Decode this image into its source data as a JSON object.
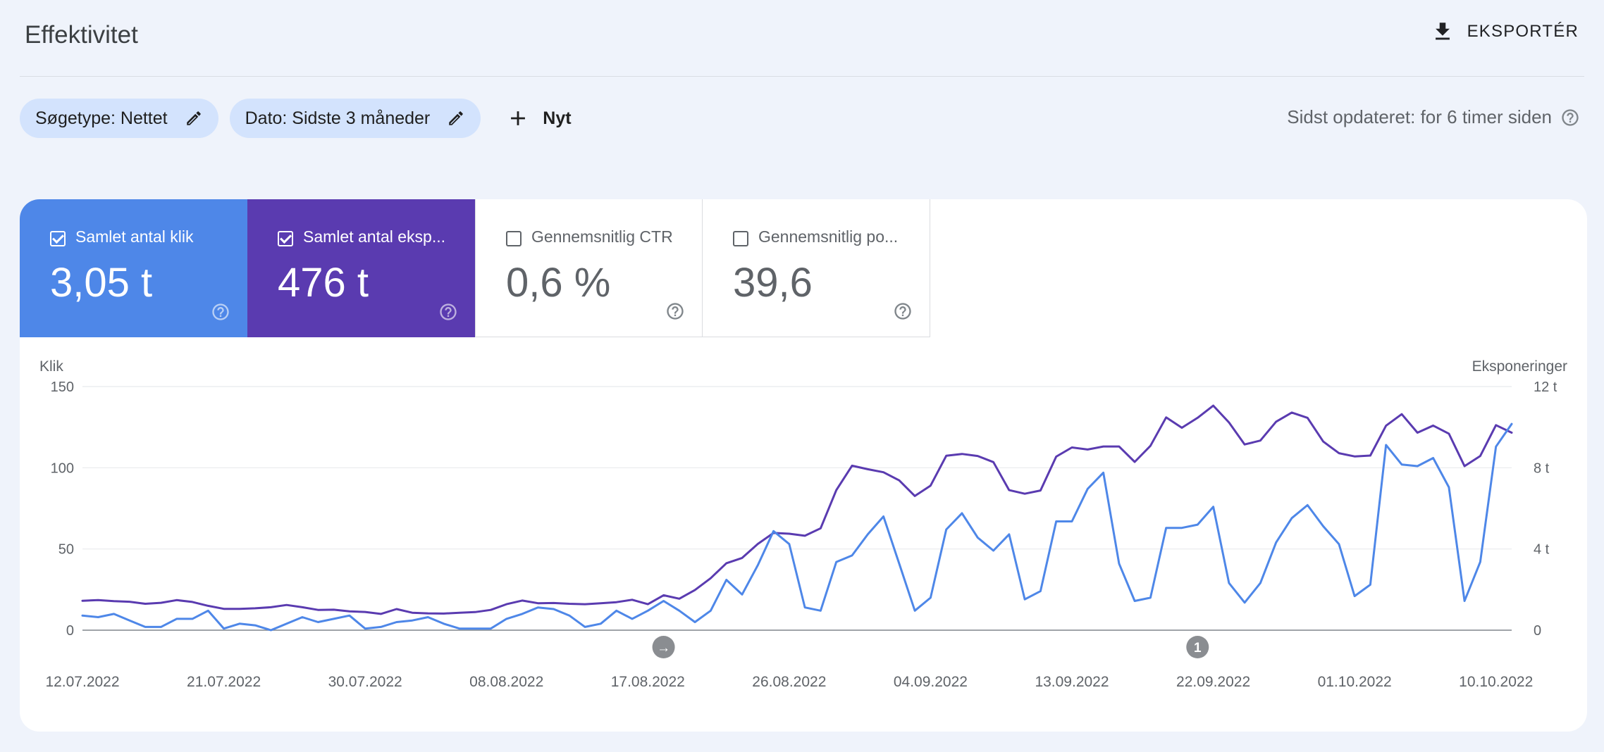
{
  "header": {
    "title": "Effektivitet",
    "export_label": "EKSPORTÉR"
  },
  "filters": {
    "chips": [
      {
        "label": "Søgetype: Nettet"
      },
      {
        "label": "Dato: Sidste 3 måneder"
      }
    ],
    "new_label": "Nyt",
    "last_updated": "Sidst opdateret: for 6 timer siden"
  },
  "metrics": [
    {
      "label": "Samlet antal klik",
      "value": "3,05 t",
      "checked": true,
      "color": "#4e87e8"
    },
    {
      "label": "Samlet antal eksp...",
      "value": "476 t",
      "checked": true,
      "color": "#5a3bb0"
    },
    {
      "label": "Gennemsnitlig CTR",
      "value": "0,6 %",
      "checked": false
    },
    {
      "label": "Gennemsnitlig po...",
      "value": "39,6",
      "checked": false
    }
  ],
  "chart_data": {
    "type": "line",
    "left_axis": {
      "title": "Klik",
      "ticks": [
        "0",
        "50",
        "100",
        "150"
      ],
      "range": [
        0,
        150
      ]
    },
    "right_axis": {
      "title": "Eksponeringer",
      "ticks": [
        "0",
        "4 t",
        "8 t",
        "12 t"
      ],
      "range": [
        0,
        12000
      ]
    },
    "x_labels": [
      "12.07.2022",
      "21.07.2022",
      "30.07.2022",
      "08.08.2022",
      "17.08.2022",
      "26.08.2022",
      "04.09.2022",
      "13.09.2022",
      "22.09.2022",
      "01.10.2022",
      "10.10.2022"
    ],
    "x_label_day_index": [
      0,
      9,
      18,
      27,
      36,
      45,
      54,
      63,
      72,
      81,
      90
    ],
    "grid": true,
    "annotations": [
      {
        "day_index": 37,
        "symbol": "→"
      },
      {
        "day_index": 71,
        "symbol": "1"
      }
    ],
    "series": [
      {
        "axis": "left",
        "color": "#4e87e8",
        "values": [
          9,
          8,
          10,
          6,
          2,
          2,
          7,
          7,
          12,
          1,
          4,
          3,
          0,
          4,
          8,
          5,
          7,
          9,
          1,
          2,
          5,
          6,
          8,
          4,
          1,
          1,
          1,
          7,
          10,
          14,
          13,
          9,
          2,
          4,
          12,
          7,
          12,
          18,
          12,
          5,
          12,
          31,
          22,
          40,
          61,
          53,
          14,
          12,
          42,
          46,
          59,
          70,
          41,
          12,
          20,
          62,
          72,
          57,
          49,
          59,
          19,
          24,
          67,
          67,
          87,
          97,
          41,
          18,
          20,
          63,
          63,
          65,
          76,
          29,
          17,
          29,
          54,
          69,
          77,
          64,
          53,
          21,
          28,
          114,
          102,
          101,
          106,
          88,
          18,
          42,
          113,
          127
        ]
      },
      {
        "axis": "right",
        "color": "#5a3bb0",
        "values": [
          1450,
          1480,
          1430,
          1400,
          1300,
          1350,
          1480,
          1390,
          1200,
          1050,
          1050,
          1080,
          1130,
          1240,
          1130,
          1000,
          1010,
          930,
          900,
          800,
          1040,
          860,
          830,
          820,
          860,
          890,
          1000,
          1280,
          1460,
          1330,
          1340,
          1300,
          1280,
          1330,
          1380,
          1500,
          1280,
          1720,
          1550,
          1980,
          2560,
          3300,
          3560,
          4250,
          4790,
          4750,
          4650,
          5020,
          6900,
          8100,
          7930,
          7780,
          7380,
          6610,
          7120,
          8590,
          8680,
          8580,
          8280,
          6900,
          6720,
          6880,
          8550,
          9000,
          8900,
          9050,
          9050,
          8290,
          9080,
          10480,
          9970,
          10460,
          11060,
          10230,
          9150,
          9340,
          10270,
          10720,
          10460,
          9290,
          8720,
          8560,
          8600,
          10070,
          10640,
          9730,
          10080,
          9680,
          8080,
          8580,
          10100,
          9730
        ]
      }
    ]
  }
}
